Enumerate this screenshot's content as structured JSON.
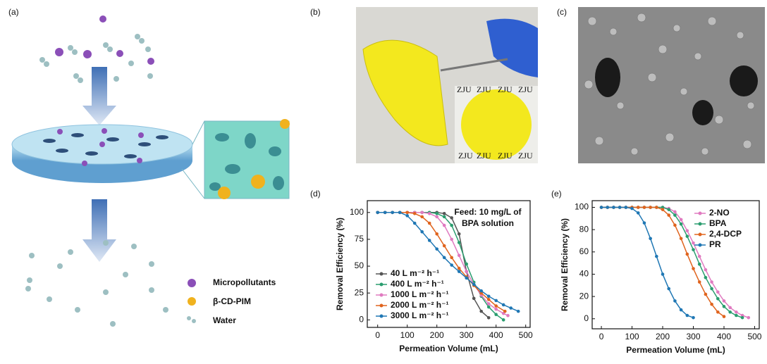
{
  "figure": {
    "panel_labels": [
      "(a)",
      "(b)",
      "(c)"
    ],
    "legend_a": [
      "Micropollutants",
      "β-CD-PIM",
      "Water"
    ],
    "watermark": "ZJU"
  },
  "chart_data": [
    {
      "type": "line",
      "label": "(d)",
      "xlabel": "Permeation Volume (mL)",
      "ylabel": "Removal Efficiency (%)",
      "annotation": [
        "Feed: 10 mg/L of",
        "BPA solution"
      ],
      "xlim": [
        -35,
        515
      ],
      "ylim": [
        -7,
        111
      ],
      "xticks": [
        0,
        100,
        200,
        300,
        400,
        500
      ],
      "yticks": [
        0,
        25,
        50,
        75,
        100
      ],
      "legend": "lower left",
      "series": [
        {
          "name": "40 L m⁻² h⁻¹",
          "color": "#555555",
          "x": [
            0,
            25,
            50,
            75,
            100,
            125,
            150,
            175,
            200,
            225,
            250,
            275,
            300,
            325,
            350,
            375
          ],
          "values": [
            100,
            100,
            100,
            100,
            100,
            100,
            100,
            100,
            100,
            99,
            95,
            80,
            45,
            20,
            8,
            2
          ]
        },
        {
          "name": "400 L m⁻² h⁻¹",
          "color": "#2a9d6f",
          "x": [
            0,
            25,
            50,
            75,
            100,
            125,
            150,
            175,
            200,
            225,
            250,
            275,
            300,
            325,
            350,
            375,
            400,
            425
          ],
          "values": [
            100,
            100,
            100,
            100,
            100,
            100,
            100,
            100,
            99,
            96,
            88,
            72,
            52,
            35,
            22,
            12,
            5,
            0
          ]
        },
        {
          "name": "1000 L m⁻² h⁻¹",
          "color": "#e07ac0",
          "x": [
            0,
            25,
            50,
            75,
            100,
            125,
            150,
            175,
            200,
            225,
            250,
            275,
            300,
            325,
            350,
            375,
            400,
            425,
            440
          ],
          "values": [
            100,
            100,
            100,
            100,
            100,
            100,
            100,
            99,
            96,
            88,
            75,
            60,
            45,
            33,
            23,
            15,
            10,
            6,
            4
          ]
        },
        {
          "name": "2000 L m⁻² h⁻¹",
          "color": "#e0641e",
          "x": [
            0,
            25,
            50,
            75,
            100,
            125,
            150,
            175,
            200,
            225,
            250,
            275,
            300,
            325,
            350,
            375,
            400,
            430
          ],
          "values": [
            100,
            100,
            100,
            100,
            100,
            99,
            96,
            90,
            80,
            69,
            58,
            48,
            40,
            32,
            25,
            19,
            13,
            8
          ]
        },
        {
          "name": "3000 L m⁻² h⁻¹",
          "color": "#1f77b4",
          "x": [
            0,
            25,
            50,
            75,
            100,
            125,
            150,
            175,
            200,
            225,
            250,
            275,
            300,
            325,
            350,
            375,
            400,
            425,
            450,
            475
          ],
          "values": [
            100,
            100,
            100,
            100,
            97,
            90,
            82,
            74,
            66,
            58,
            51,
            45,
            39,
            33,
            27,
            22,
            18,
            14,
            11,
            8
          ]
        }
      ]
    },
    {
      "type": "line",
      "label": "(e)",
      "xlabel": "Permeation Volume (mL)",
      "ylabel": "Removal Efficiency (%)",
      "xlim": [
        -30,
        515
      ],
      "ylim": [
        -9,
        106
      ],
      "xticks": [
        0,
        100,
        200,
        300,
        400,
        500
      ],
      "yticks": [
        0,
        20,
        40,
        60,
        80,
        100
      ],
      "legend": "upper right",
      "series": [
        {
          "name": "2-NO",
          "color": "#e07ac0",
          "x": [
            0,
            20,
            40,
            60,
            80,
            100,
            120,
            140,
            160,
            180,
            200,
            220,
            240,
            260,
            280,
            300,
            320,
            340,
            360,
            380,
            400,
            420,
            440,
            460,
            480
          ],
          "values": [
            100,
            100,
            100,
            100,
            100,
            100,
            100,
            100,
            100,
            100,
            100,
            99,
            96,
            89,
            79,
            68,
            56,
            44,
            33,
            24,
            16,
            10,
            6,
            3,
            1
          ]
        },
        {
          "name": "BPA",
          "color": "#2a9d6f",
          "x": [
            0,
            20,
            40,
            60,
            80,
            100,
            120,
            140,
            160,
            180,
            200,
            220,
            240,
            260,
            280,
            300,
            320,
            340,
            360,
            380,
            400,
            420,
            440,
            460
          ],
          "values": [
            100,
            100,
            100,
            100,
            100,
            100,
            100,
            100,
            100,
            100,
            100,
            98,
            93,
            85,
            74,
            62,
            49,
            37,
            27,
            18,
            11,
            6,
            3,
            1
          ]
        },
        {
          "name": "2,4-DCP",
          "color": "#e0641e",
          "x": [
            0,
            20,
            40,
            60,
            80,
            100,
            120,
            140,
            160,
            180,
            200,
            220,
            240,
            260,
            280,
            300,
            320,
            340,
            360,
            380,
            400
          ],
          "values": [
            100,
            100,
            100,
            100,
            100,
            100,
            100,
            100,
            100,
            100,
            98,
            93,
            84,
            72,
            58,
            45,
            33,
            22,
            13,
            6,
            2
          ]
        },
        {
          "name": "PR",
          "color": "#1f77b4",
          "x": [
            0,
            20,
            40,
            60,
            80,
            100,
            120,
            140,
            160,
            180,
            200,
            220,
            240,
            260,
            280,
            300
          ],
          "values": [
            100,
            100,
            100,
            100,
            100,
            99,
            95,
            86,
            72,
            56,
            40,
            27,
            16,
            8,
            3,
            1
          ]
        }
      ]
    }
  ]
}
